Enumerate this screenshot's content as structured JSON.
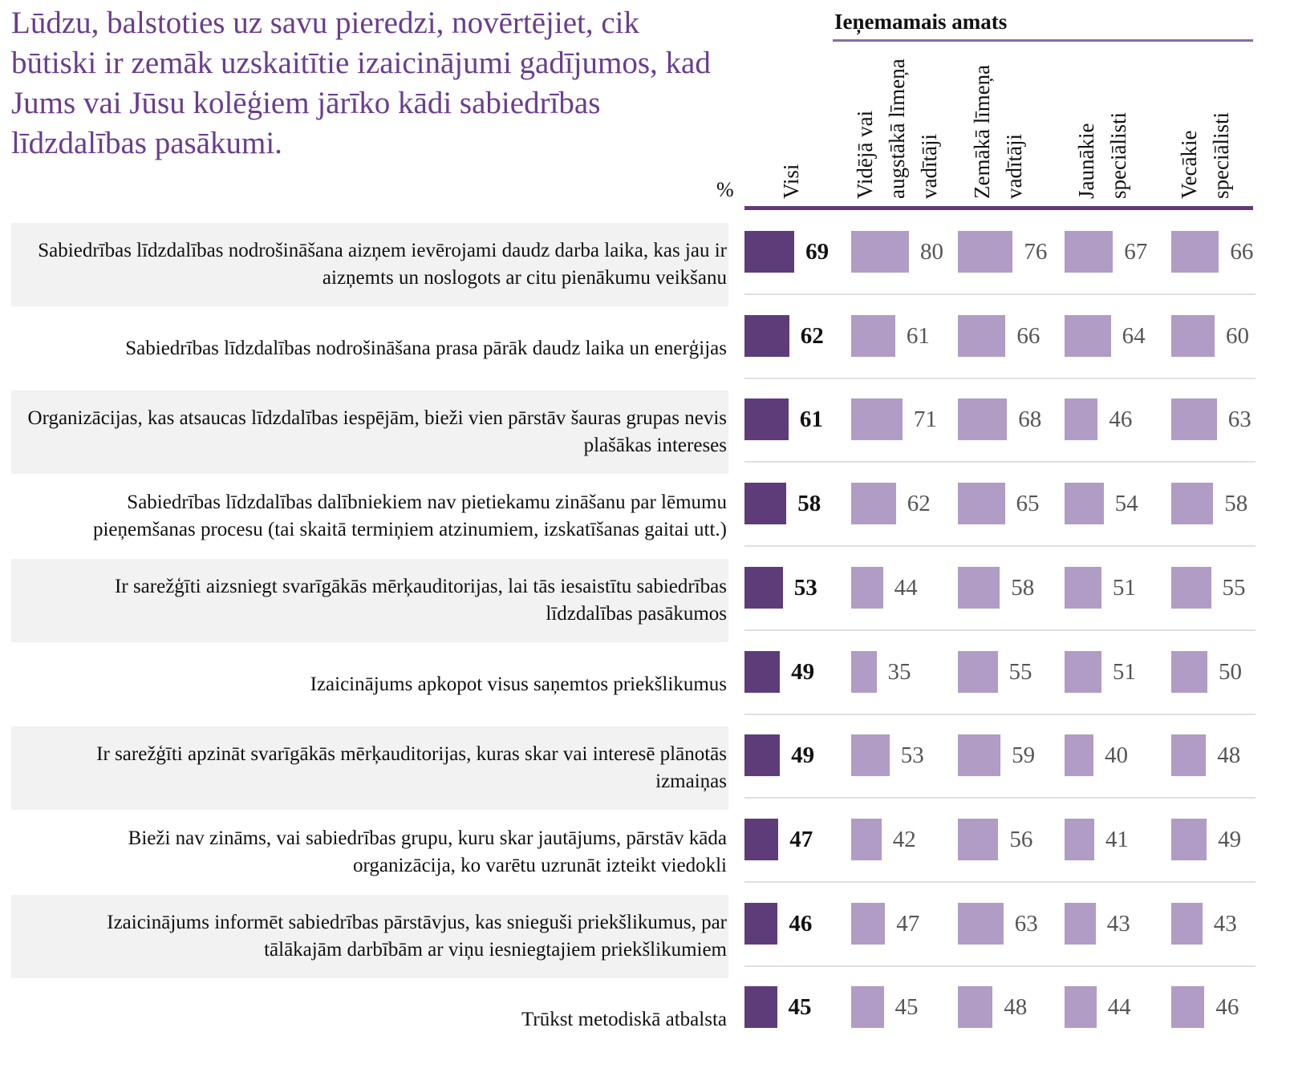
{
  "chart_data": {
    "type": "bar",
    "title": "Lūdzu, balstoties uz savu pieredzi, novērtējiet, cik būtiski ir zemāk uzskaitītie izaicinājumi gadījumos, kad Jums vai Jūsu kolēģiem jārīko kādi sabiedrības līdzdalības pasākumi.",
    "unit_label": "%",
    "group_label": "Ieņemamais amats",
    "categories": [
      "Sabiedrības līdzdalības nodrošināšana aizņem ievērojami daudz darba laika, kas jau ir aizņemts un noslogots ar  citu pienākumu veikšanu",
      "Sabiedrības līdzdalības nodrošināšana prasa pārāk daudz laika un enerģijas",
      "Organizācijas, kas atsaucas līdzdalības iespējām, bieži vien pārstāv šauras grupas nevis plašākas intereses",
      "Sabiedrības līdzdalības dalībniekiem nav pietiekamu zināšanu par lēmumu pieņemšanas procesu (tai skaitā termiņiem atzinumiem, izskatīšanas gaitai utt.)",
      "Ir sarežģīti aizsniegt svarīgākās mērķauditorijas, lai tās iesaistītu sabiedrības līdzdalības pasākumos",
      "Izaicinājums apkopot visus saņemtos priekšlikumus",
      "Ir sarežģīti apzināt svarīgākās mērķauditorijas, kuras skar vai interesē plānotās izmaiņas",
      "Bieži nav zināms, vai sabiedrības grupu, kuru skar jautājums, pārstāv kāda organizācija, ko varētu uzrunāt izteikt viedokli",
      "Izaicinājums informēt sabiedrības pārstāvjus, kas snieguši priekšlikumus, par tālākajām darbībām ar viņu iesniegtajiem priekšlikumiem",
      "Trūkst metodiskā atbalsta"
    ],
    "series": [
      {
        "name": "Visi",
        "color": "#5e3c7a",
        "values": [
          69,
          62,
          61,
          58,
          53,
          49,
          49,
          47,
          46,
          45
        ]
      },
      {
        "name": "Vidējā vai augstākā līmeņa vadītāji",
        "color": "#b09cc4",
        "values": [
          80,
          61,
          71,
          62,
          44,
          35,
          53,
          42,
          47,
          45
        ]
      },
      {
        "name": "Zemākā līmeņa vadītāji",
        "color": "#b09cc4",
        "values": [
          76,
          66,
          68,
          65,
          58,
          55,
          59,
          56,
          63,
          48
        ]
      },
      {
        "name": "Jaunākie speciālisti",
        "color": "#b09cc4",
        "values": [
          67,
          64,
          46,
          54,
          51,
          51,
          40,
          41,
          43,
          44
        ]
      },
      {
        "name": "Vecākie speciālisti",
        "color": "#b09cc4",
        "values": [
          66,
          60,
          63,
          58,
          55,
          50,
          48,
          49,
          43,
          46
        ]
      }
    ]
  }
}
